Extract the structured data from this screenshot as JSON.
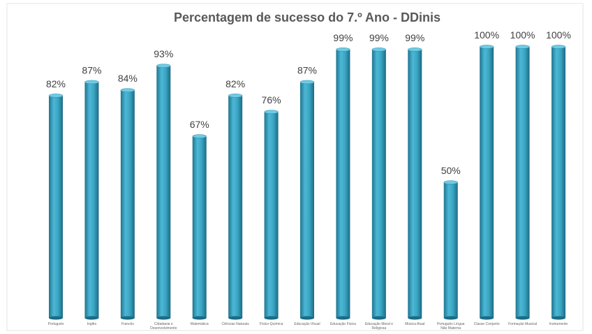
{
  "chart_data": {
    "type": "bar",
    "title": "Percentagem de sucesso do 7.º Ano - DDinis",
    "categories": [
      "Português",
      "Inglês",
      "Francês",
      "Cidadania e Desenvolvimento",
      "Matemática",
      "Ciências Naturais",
      "Físico-Química",
      "Educação Visual",
      "Educação Física",
      "Educação Moral e Religiosa",
      "Música Atual",
      "Português Língua Não Materna",
      "Classe Conjunto",
      "Formação Musical",
      "Instrumento"
    ],
    "values": [
      82,
      87,
      84,
      93,
      67,
      82,
      76,
      87,
      99,
      99,
      99,
      50,
      100,
      100,
      100
    ],
    "value_labels": [
      "82%",
      "87%",
      "84%",
      "93%",
      "67%",
      "82%",
      "76%",
      "87%",
      "99%",
      "99%",
      "99%",
      "50%",
      "100%",
      "100%",
      "100%"
    ],
    "color": "#3aa6c4"
  }
}
